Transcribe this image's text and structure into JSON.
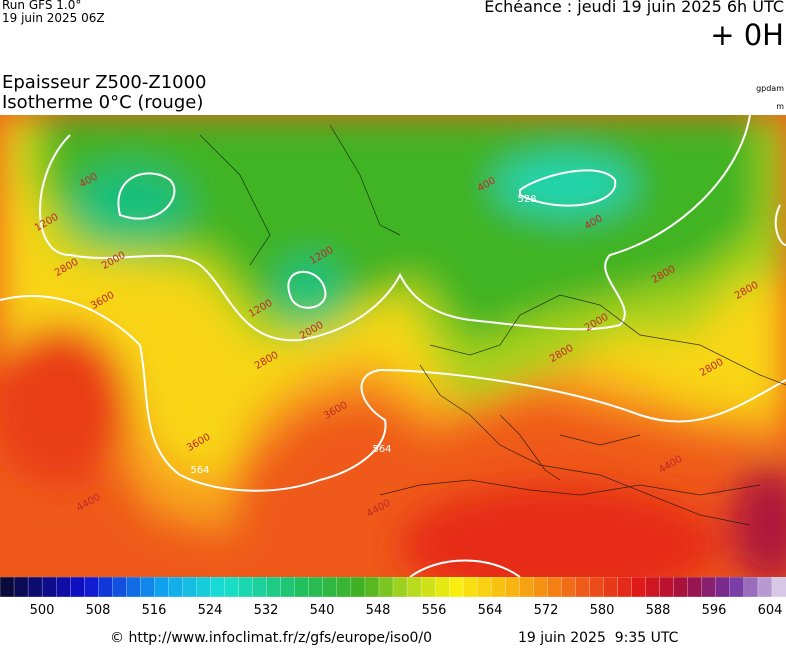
{
  "header": {
    "run": "Run GFS 1.0°",
    "run_date": "19 juin 2025 06Z",
    "valid": "Echéance : jeudi 19 juin 2025 6h UTC",
    "lead": "+ 0H"
  },
  "title": {
    "line1": "Epaisseur Z500-Z1000",
    "line2": "Isotherme 0°C (rouge)",
    "unit1": "gpdam",
    "unit2": "m"
  },
  "map_labels": [
    528,
    564,
    564,
    400,
    1200,
    2000,
    2800,
    3600,
    1200,
    2000,
    2800,
    3600,
    3600,
    4400,
    4400,
    4400,
    1200,
    2800,
    2800,
    2000,
    400,
    400,
    2800,
    2800
  ],
  "colorbar": {
    "ticks": [
      500,
      508,
      516,
      524,
      532,
      540,
      548,
      556,
      564,
      572,
      580,
      588,
      596,
      604
    ]
  },
  "footer": {
    "source": "© http://www.infoclimat.fr/z/gfs/europe/iso0/0",
    "generated": "19 juin 2025  9:35 UTC"
  }
}
